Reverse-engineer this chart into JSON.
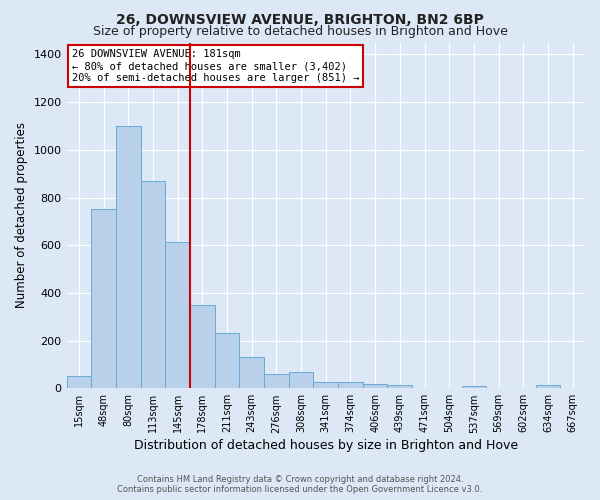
{
  "title": "26, DOWNSVIEW AVENUE, BRIGHTON, BN2 6BP",
  "subtitle": "Size of property relative to detached houses in Brighton and Hove",
  "xlabel": "Distribution of detached houses by size in Brighton and Hove",
  "ylabel": "Number of detached properties",
  "bar_labels": [
    "15sqm",
    "48sqm",
    "80sqm",
    "113sqm",
    "145sqm",
    "178sqm",
    "211sqm",
    "243sqm",
    "276sqm",
    "308sqm",
    "341sqm",
    "374sqm",
    "406sqm",
    "439sqm",
    "471sqm",
    "504sqm",
    "537sqm",
    "569sqm",
    "602sqm",
    "634sqm",
    "667sqm"
  ],
  "bar_values": [
    50,
    750,
    1100,
    870,
    615,
    350,
    230,
    130,
    60,
    70,
    25,
    25,
    20,
    12,
    0,
    0,
    10,
    0,
    0,
    12,
    0
  ],
  "bar_color": "#b8d0ea",
  "bar_edge_color": "#6aaad4",
  "vline_color": "#cc0000",
  "ylim": [
    0,
    1450
  ],
  "yticks": [
    0,
    200,
    400,
    600,
    800,
    1000,
    1200,
    1400
  ],
  "annotation_title": "26 DOWNSVIEW AVENUE: 181sqm",
  "annotation_line1": "← 80% of detached houses are smaller (3,402)",
  "annotation_line2": "20% of semi-detached houses are larger (851) →",
  "annotation_box_color": "#ffffff",
  "annotation_box_edge": "#cc0000",
  "footer1": "Contains HM Land Registry data © Crown copyright and database right 2024.",
  "footer2": "Contains public sector information licensed under the Open Government Licence v3.0.",
  "background_color": "#dce8f5",
  "plot_background": "#dce8f5",
  "grid_color": "#ffffff",
  "title_fontsize": 10,
  "subtitle_fontsize": 9
}
